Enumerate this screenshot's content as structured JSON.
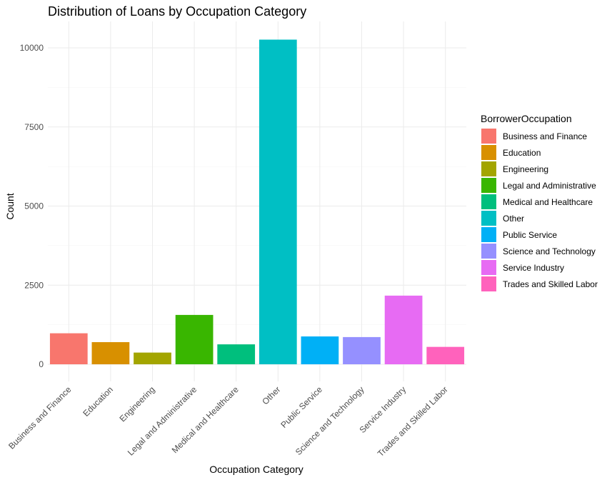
{
  "chart_data": {
    "type": "bar",
    "title": "Distribution of Loans by Occupation Category",
    "xlabel": "Occupation Category",
    "ylabel": "Count",
    "categories": [
      "Business and Finance",
      "Education",
      "Engineering",
      "Legal and Administrative",
      "Medical and Healthcare",
      "Other",
      "Public Service",
      "Science and Technology",
      "Service Industry",
      "Trades and Skilled Labor"
    ],
    "values": [
      980,
      700,
      370,
      1560,
      630,
      10260,
      880,
      860,
      2170,
      550
    ],
    "colors": [
      "#F8766D",
      "#D89000",
      "#A3A500",
      "#39B600",
      "#00BF7D",
      "#00BFC4",
      "#00B0F6",
      "#9590FF",
      "#E76BF3",
      "#FF62BC"
    ],
    "ylim": [
      0,
      10700
    ],
    "yticks": [
      0,
      2500,
      5000,
      7500,
      10000
    ],
    "grid": true,
    "legend": {
      "title": "BorrowerOccupation",
      "position": "right"
    }
  }
}
